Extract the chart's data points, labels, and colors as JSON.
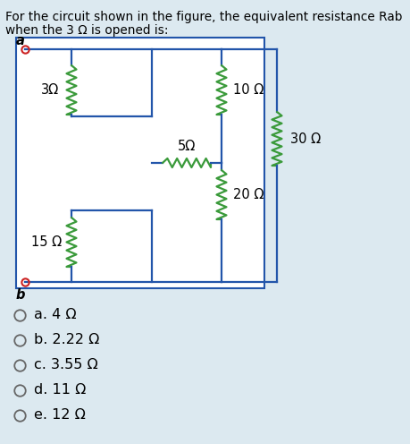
{
  "title_line1": "For the circuit shown in the figure, the equivalent resistance Rab",
  "title_line2": "when the 3 Ω is opened is:",
  "bg_color": "#dce9f0",
  "circuit_bg": "#ffffff",
  "wire_color": "#2255aa",
  "resistor_color": "#3a9a3a",
  "label_color": "#000000",
  "node_color": "#cc2222",
  "resistors": {
    "R3": "3Ω",
    "R5": "5Ω",
    "R10": "10 Ω",
    "R15": "15 Ω",
    "R20": "20 Ω",
    "R30": "30 Ω"
  },
  "choices": [
    "a. 4 Ω",
    "b. 2.22 Ω",
    "c. 3.55 Ω",
    "d. 11 Ω",
    "e. 12 Ω"
  ],
  "title_fontsize": 9.8,
  "label_fontsize": 10.5,
  "choice_fontsize": 11.5
}
